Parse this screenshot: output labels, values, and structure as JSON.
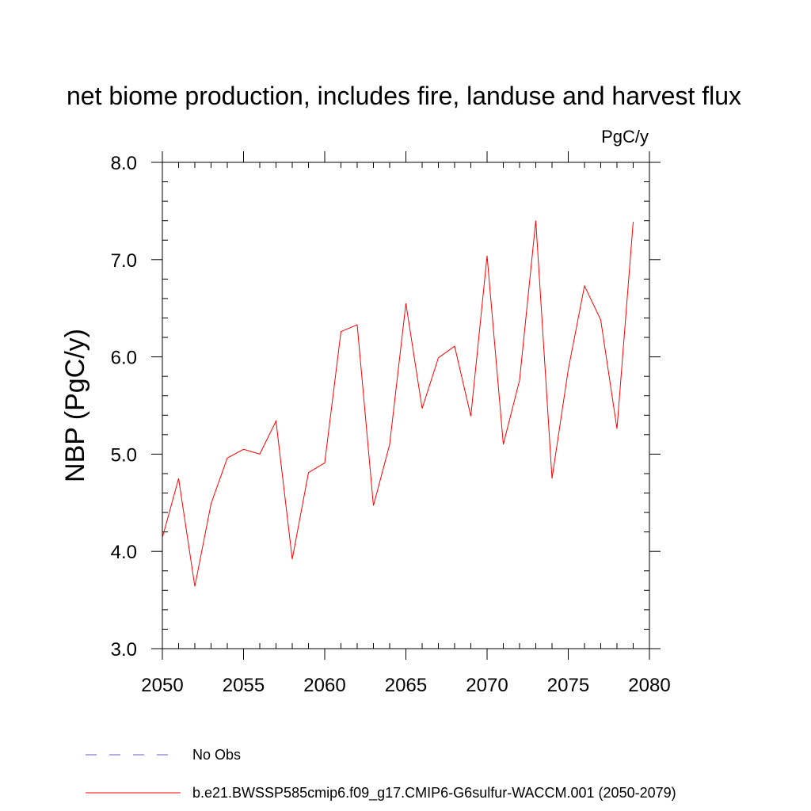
{
  "chart_data": {
    "type": "line",
    "title": "net biome production, includes fire, landuse and harvest flux",
    "units_label": "PgC/y",
    "ylabel": "NBP  (PgC/y)",
    "xlabel": "",
    "xlim": [
      2050,
      2080
    ],
    "ylim": [
      3.0,
      8.0
    ],
    "x_ticks": [
      2050,
      2055,
      2060,
      2065,
      2070,
      2075,
      2080
    ],
    "x_tick_labels": [
      "2050",
      "2055",
      "2060",
      "2065",
      "2070",
      "2075",
      "2080"
    ],
    "y_ticks": [
      3.0,
      4.0,
      5.0,
      6.0,
      7.0,
      8.0
    ],
    "y_tick_labels": [
      "3.0",
      "4.0",
      "5.0",
      "6.0",
      "7.0",
      "8.0"
    ],
    "grid": false,
    "legend_position": "bottom",
    "series": [
      {
        "name": "b.e21.BWSSP585cmip6.f09_g17.CMIP6-G6sulfur-WACCM.001 (2050-2079)",
        "color": "#ff0000",
        "style": "solid",
        "x": [
          2050,
          2051,
          2052,
          2053,
          2054,
          2055,
          2056,
          2057,
          2058,
          2059,
          2060,
          2061,
          2062,
          2063,
          2064,
          2065,
          2066,
          2067,
          2068,
          2069,
          2070,
          2071,
          2072,
          2073,
          2074,
          2075,
          2076,
          2077,
          2078,
          2079
        ],
        "values": [
          4.14,
          4.75,
          3.64,
          4.49,
          4.96,
          5.05,
          5.0,
          5.34,
          3.92,
          4.81,
          4.91,
          6.26,
          6.33,
          4.47,
          5.1,
          6.55,
          5.47,
          5.99,
          6.11,
          5.39,
          7.04,
          5.1,
          5.76,
          7.4,
          4.75,
          5.87,
          6.73,
          6.38,
          5.26,
          7.39
        ]
      },
      {
        "name": "No Obs",
        "color": "#6a5acd",
        "style": "dashed",
        "x": [],
        "values": []
      }
    ]
  }
}
